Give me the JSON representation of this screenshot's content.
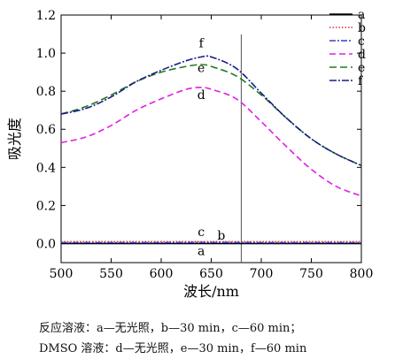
{
  "chart_data": {
    "type": "line",
    "xlabel": "波长/nm",
    "ylabel": "吸光度",
    "xlim": [
      500,
      800
    ],
    "ylim": [
      -0.1,
      1.2
    ],
    "xticks": [
      500,
      550,
      600,
      650,
      700,
      750,
      800
    ],
    "yticks": [
      "0.0",
      "0.2",
      "0.4",
      "0.6",
      "0.8",
      "1.0",
      "1.2"
    ],
    "vline_x": 680,
    "legend_position": "top-right",
    "series": [
      {
        "name": "a",
        "color": "#000000",
        "dash": "",
        "x": [
          500,
          550,
          600,
          650,
          700,
          750,
          800
        ],
        "y": [
          0.0,
          0.0,
          0.0,
          0.0,
          0.0,
          0.0,
          0.0
        ]
      },
      {
        "name": "b",
        "color": "#e53030",
        "dash": "1.5,2",
        "x": [
          500,
          550,
          600,
          650,
          700,
          750,
          800
        ],
        "y": [
          0.01,
          0.01,
          0.01,
          0.01,
          0.01,
          0.01,
          0.01
        ]
      },
      {
        "name": "c",
        "color": "#3a3acc",
        "dash": "7,2,2,2",
        "x": [
          500,
          550,
          600,
          650,
          700,
          750,
          800
        ],
        "y": [
          0.005,
          0.005,
          0.005,
          0.006,
          0.005,
          0.005,
          0.005
        ]
      },
      {
        "name": "d",
        "color": "#e020e0",
        "dash": "7,4",
        "x": [
          500,
          525,
          550,
          575,
          600,
          625,
          640,
          650,
          675,
          700,
          725,
          750,
          775,
          800
        ],
        "y": [
          0.53,
          0.56,
          0.62,
          0.7,
          0.76,
          0.81,
          0.82,
          0.81,
          0.76,
          0.64,
          0.51,
          0.39,
          0.3,
          0.25
        ]
      },
      {
        "name": "e",
        "color": "#1e7a1e",
        "dash": "8,4",
        "x": [
          500,
          525,
          550,
          575,
          600,
          625,
          640,
          650,
          675,
          700,
          725,
          750,
          775,
          800
        ],
        "y": [
          0.68,
          0.72,
          0.78,
          0.85,
          0.9,
          0.93,
          0.94,
          0.93,
          0.88,
          0.78,
          0.66,
          0.55,
          0.47,
          0.41
        ]
      },
      {
        "name": "f",
        "color": "#1a1a8c",
        "dash": "8,2,2,2",
        "x": [
          500,
          525,
          550,
          575,
          600,
          625,
          640,
          650,
          675,
          700,
          725,
          750,
          775,
          800
        ],
        "y": [
          0.68,
          0.71,
          0.77,
          0.85,
          0.91,
          0.96,
          0.98,
          0.98,
          0.92,
          0.79,
          0.66,
          0.55,
          0.47,
          0.41
        ]
      }
    ],
    "annotations": [
      {
        "text": "f",
        "x": 640,
        "y": 1.03
      },
      {
        "text": "e",
        "x": 640,
        "y": 0.9
      },
      {
        "text": "d",
        "x": 640,
        "y": 0.76
      },
      {
        "text": "c",
        "x": 640,
        "y": 0.04
      },
      {
        "text": "b",
        "x": 660,
        "y": 0.02
      },
      {
        "text": "a",
        "x": 640,
        "y": -0.06
      }
    ]
  },
  "caption": {
    "line1": "反应溶液：a—无光照，b—30 min，c—60 min；",
    "line2": "DMSO 溶液：d—无光照，e—30 min，f—60 min"
  }
}
